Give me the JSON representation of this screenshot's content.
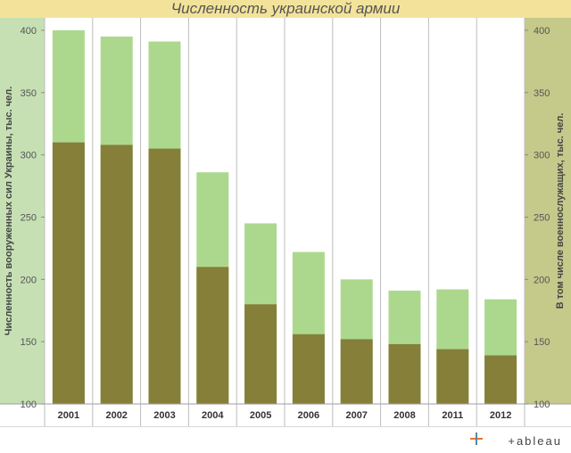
{
  "title": "Численность украинской армии",
  "brand": "+ableau",
  "colors": {
    "title_bg": "#f3e39a",
    "left_axis_bg": "#c6e0b4",
    "right_axis_bg": "#c5c98a",
    "total_bar": "#acd88e",
    "personnel_bar": "#857f3a",
    "brand_icon": [
      "#e8762b",
      "#5b879b",
      "#c72035",
      "#1f447e"
    ]
  },
  "chart_data": {
    "type": "bar",
    "title": "Численность украинской армии",
    "categories": [
      "2001",
      "2002",
      "2003",
      "2004",
      "2005",
      "2006",
      "2007",
      "2008",
      "2011",
      "2012"
    ],
    "series": [
      {
        "name": "Численность вооруженных сил Украины, тыс. чел.",
        "axis": "left",
        "values": [
          400,
          395,
          391,
          286,
          245,
          222,
          200,
          191,
          192,
          184
        ]
      },
      {
        "name": "В том числе военнослужащих, тыс. чел.",
        "axis": "right",
        "values": [
          310,
          308,
          305,
          210,
          180,
          156,
          152,
          148,
          144,
          139
        ]
      }
    ],
    "ylabel_left": "Численность вооруженных сил Украины, тыс. чел.",
    "ylabel_right": "В том числе военнослужащих, тыс. чел.",
    "ylim": [
      100,
      410
    ],
    "yticks": [
      100,
      150,
      200,
      250,
      300,
      350,
      400
    ],
    "grid": false,
    "overlaid": true
  }
}
